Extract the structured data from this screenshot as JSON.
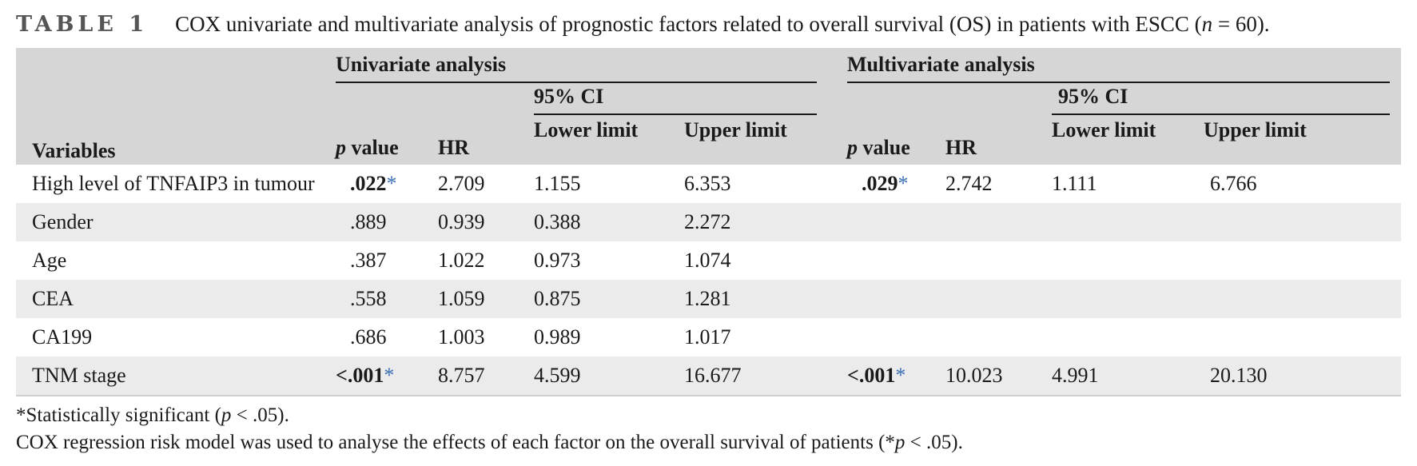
{
  "caption": {
    "label": "TABLE 1",
    "title_pre": "COX univariate and multivariate analysis of prognostic factors related to overall survival (OS) in patients with ESCC (",
    "title_n": "n",
    "title_post": " = 60)."
  },
  "header": {
    "variables": "Variables",
    "univariate": "Univariate analysis",
    "multivariate": "Multivariate analysis",
    "ci": "95% CI",
    "p_letter": "p",
    "p_value": " value",
    "hr": "HR",
    "lower": "Lower limit",
    "upper": "Upper limit"
  },
  "rows": [
    {
      "variable": "High level of TNFAIP3 in tumour",
      "u_p": ".022",
      "u_sig": "*",
      "u_hr": "2.709",
      "u_lower": "1.155",
      "u_upper": "6.353",
      "m_p": ".029",
      "m_sig": "*",
      "m_hr": "2.742",
      "m_lower": "1.111",
      "m_upper": "6.766"
    },
    {
      "variable": "Gender",
      "u_p": ".889",
      "u_sig": "",
      "u_hr": "0.939",
      "u_lower": "0.388",
      "u_upper": "2.272",
      "m_p": "",
      "m_sig": "",
      "m_hr": "",
      "m_lower": "",
      "m_upper": ""
    },
    {
      "variable": "Age",
      "u_p": ".387",
      "u_sig": "",
      "u_hr": "1.022",
      "u_lower": "0.973",
      "u_upper": "1.074",
      "m_p": "",
      "m_sig": "",
      "m_hr": "",
      "m_lower": "",
      "m_upper": ""
    },
    {
      "variable": "CEA",
      "u_p": ".558",
      "u_sig": "",
      "u_hr": "1.059",
      "u_lower": "0.875",
      "u_upper": "1.281",
      "m_p": "",
      "m_sig": "",
      "m_hr": "",
      "m_lower": "",
      "m_upper": ""
    },
    {
      "variable": "CA199",
      "u_p": ".686",
      "u_sig": "",
      "u_hr": "1.003",
      "u_lower": "0.989",
      "u_upper": "1.017",
      "m_p": "",
      "m_sig": "",
      "m_hr": "",
      "m_lower": "",
      "m_upper": ""
    },
    {
      "variable": "TNM stage",
      "u_p": "<.001",
      "u_sig": "*",
      "u_hr": "8.757",
      "u_lower": "4.599",
      "u_upper": "16.677",
      "m_p": "<.001",
      "m_sig": "*",
      "m_hr": "10.023",
      "m_lower": "4.991",
      "m_upper": "20.130"
    }
  ],
  "footnotes": {
    "f1_star": "*",
    "f1_pre": "Statistically significant (",
    "f1_p": "p",
    "f1_post": " < .05).",
    "f2_pre": "COX regression risk model was used to analyse the effects of each factor on the overall survival of patients (*",
    "f2_p": "p",
    "f2_post": " < .05)."
  }
}
